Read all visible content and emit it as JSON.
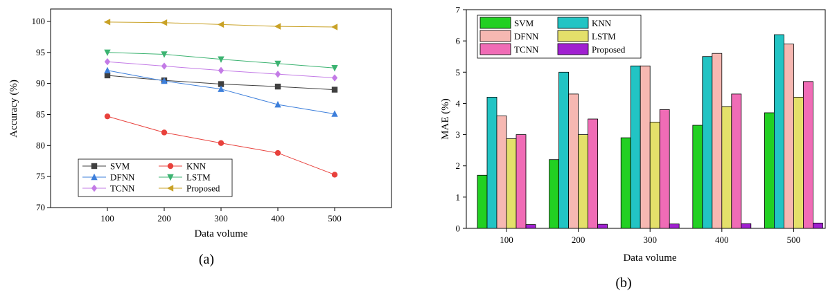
{
  "chart_data": [
    {
      "type": "line",
      "panel_label": "(a)",
      "xlabel": "Data volume",
      "ylabel": "Accuracy (%)",
      "x": [
        100,
        200,
        300,
        400,
        500
      ],
      "xlim": [
        0,
        600
      ],
      "ylim": [
        70,
        102
      ],
      "yticks": [
        70,
        75,
        80,
        85,
        90,
        95,
        100
      ],
      "legend_position": "bottom-left",
      "grid": false,
      "series": [
        {
          "name": "SVM",
          "color": "#404040",
          "marker": "square",
          "values": [
            91.3,
            90.5,
            89.9,
            89.5,
            89.0
          ]
        },
        {
          "name": "KNN",
          "color": "#e8413c",
          "marker": "circle",
          "values": [
            84.7,
            82.1,
            80.4,
            78.8,
            75.3
          ]
        },
        {
          "name": "DFNN",
          "color": "#3d7fdb",
          "marker": "triangle-up",
          "values": [
            92.1,
            90.4,
            89.1,
            86.6,
            85.1
          ]
        },
        {
          "name": "LSTM",
          "color": "#3cb371",
          "marker": "triangle-down",
          "values": [
            95.0,
            94.7,
            93.9,
            93.2,
            92.5
          ]
        },
        {
          "name": "TCNN",
          "color": "#c37be6",
          "marker": "diamond",
          "values": [
            93.5,
            92.8,
            92.1,
            91.5,
            90.9
          ]
        },
        {
          "name": "Proposed",
          "color": "#c9a227",
          "marker": "triangle-left",
          "values": [
            99.9,
            99.8,
            99.5,
            99.2,
            99.1
          ]
        }
      ]
    },
    {
      "type": "bar",
      "panel_label": "(b)",
      "xlabel": "Data volume",
      "ylabel": "MAE (%)",
      "categories": [
        "100",
        "200",
        "300",
        "400",
        "500"
      ],
      "ylim": [
        0,
        7
      ],
      "yticks": [
        0,
        1,
        2,
        3,
        4,
        5,
        6,
        7
      ],
      "legend_position": "top-left",
      "grid": false,
      "series": [
        {
          "name": "SVM",
          "color": "#22d022",
          "values": [
            1.7,
            2.2,
            2.9,
            3.3,
            3.7
          ]
        },
        {
          "name": "KNN",
          "color": "#22c4c4",
          "values": [
            4.2,
            5.0,
            5.2,
            5.5,
            6.2
          ]
        },
        {
          "name": "DFNN",
          "color": "#f6b8b2",
          "values": [
            3.6,
            4.3,
            5.2,
            5.6,
            5.9
          ]
        },
        {
          "name": "LSTM",
          "color": "#e4e06a",
          "values": [
            2.87,
            3.0,
            3.4,
            3.9,
            4.2
          ]
        },
        {
          "name": "TCNN",
          "color": "#f06cb6",
          "values": [
            3.0,
            3.5,
            3.8,
            4.3,
            4.7
          ]
        },
        {
          "name": "Proposed",
          "color": "#a020d0",
          "values": [
            0.12,
            0.13,
            0.14,
            0.15,
            0.17
          ]
        }
      ]
    }
  ]
}
